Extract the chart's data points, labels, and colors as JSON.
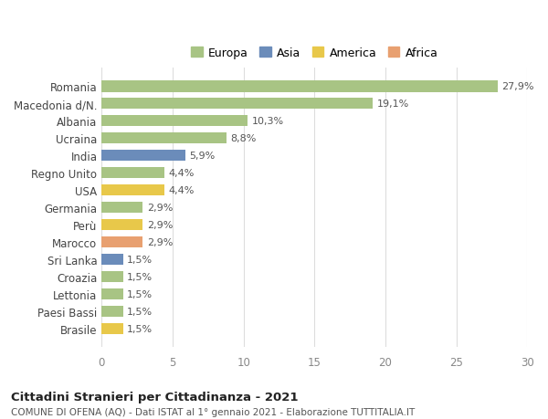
{
  "countries": [
    "Romania",
    "Macedonia d/N.",
    "Albania",
    "Ucraina",
    "India",
    "Regno Unito",
    "USA",
    "Germania",
    "Perù",
    "Marocco",
    "Sri Lanka",
    "Croazia",
    "Lettonia",
    "Paesi Bassi",
    "Brasile"
  ],
  "values": [
    27.9,
    19.1,
    10.3,
    8.8,
    5.9,
    4.4,
    4.4,
    2.9,
    2.9,
    2.9,
    1.5,
    1.5,
    1.5,
    1.5,
    1.5
  ],
  "labels": [
    "27,9%",
    "19,1%",
    "10,3%",
    "8,8%",
    "5,9%",
    "4,4%",
    "4,4%",
    "2,9%",
    "2,9%",
    "2,9%",
    "1,5%",
    "1,5%",
    "1,5%",
    "1,5%",
    "1,5%"
  ],
  "continents": [
    "Europa",
    "Europa",
    "Europa",
    "Europa",
    "Asia",
    "Europa",
    "America",
    "Europa",
    "America",
    "Africa",
    "Asia",
    "Europa",
    "Europa",
    "Europa",
    "America"
  ],
  "colors": {
    "Europa": "#a8c484",
    "Asia": "#6b8cba",
    "America": "#e8c84a",
    "Africa": "#e8a070"
  },
  "legend_order": [
    "Europa",
    "Asia",
    "America",
    "Africa"
  ],
  "xlim": [
    0,
    30
  ],
  "xticks": [
    0,
    5,
    10,
    15,
    20,
    25,
    30
  ],
  "title": "Cittadini Stranieri per Cittadinanza - 2021",
  "subtitle": "COMUNE DI OFENA (AQ) - Dati ISTAT al 1° gennaio 2021 - Elaborazione TUTTITALIA.IT",
  "background_color": "#ffffff",
  "grid_color": "#dddddd",
  "bar_height": 0.65
}
